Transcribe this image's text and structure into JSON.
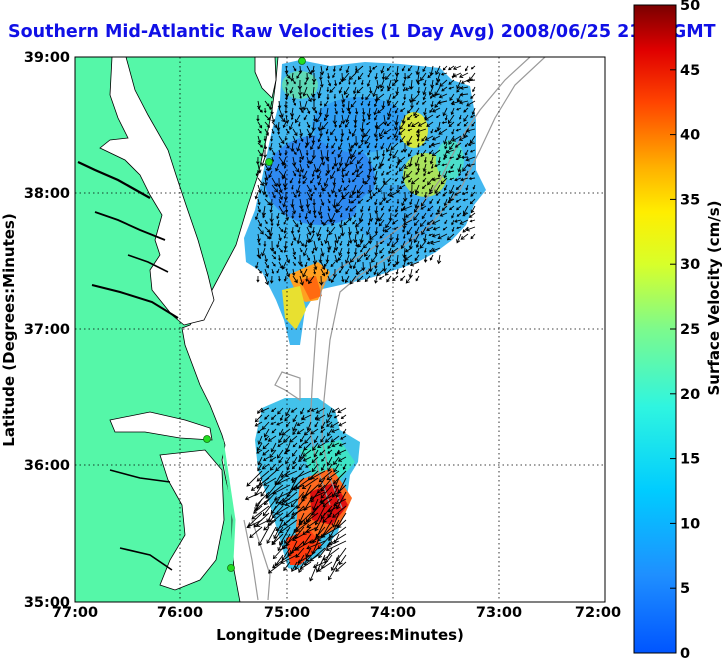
{
  "title": "Southern Mid-Atlantic Raw Velocities (1 Day Avg) 2008/06/25 2100 GMT",
  "map": {
    "xlabel": "Longitude (Degrees:Minutes)",
    "ylabel": "Latitude (Degrees:Minutes)",
    "x_ticks": [
      "77:00",
      "76:00",
      "75:00",
      "74:00",
      "73:00",
      "72:00"
    ],
    "y_ticks": [
      "39:00",
      "38:00",
      "37:00",
      "36:00",
      "35:00"
    ],
    "lon_range": [
      -77,
      -72
    ],
    "lat_range": [
      35,
      39
    ],
    "grid": "dotted",
    "land_color": "#55f7a8",
    "water_color": "#ffffff",
    "coastline_color": "#000000",
    "bathymetry_color": "#9a9a9a",
    "vector_color": "#000000",
    "station_color": "#22dd22"
  },
  "colorbar": {
    "label": "Surface Velocity (cm/s)",
    "ticks": [
      "50",
      "45",
      "40",
      "35",
      "30",
      "25",
      "20",
      "15",
      "10",
      "5",
      "0"
    ],
    "range": [
      0,
      50
    ],
    "colormap": "jet"
  }
}
